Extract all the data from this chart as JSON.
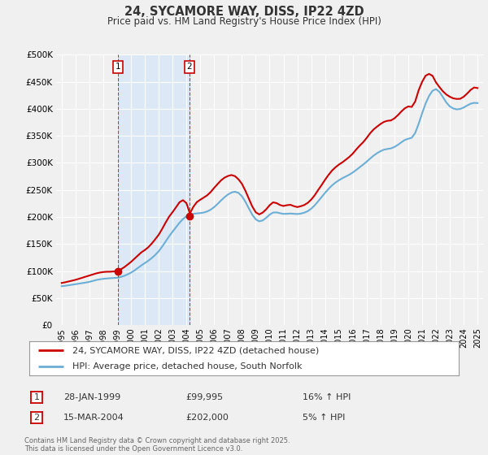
{
  "title": "24, SYCAMORE WAY, DISS, IP22 4ZD",
  "subtitle": "Price paid vs. HM Land Registry's House Price Index (HPI)",
  "ytick_values": [
    0,
    50000,
    100000,
    150000,
    200000,
    250000,
    300000,
    350000,
    400000,
    450000,
    500000
  ],
  "ylim": [
    0,
    500000
  ],
  "xlim": [
    1994.6,
    2025.4
  ],
  "background_color": "#f0f0f0",
  "plot_bg_color": "#f0f0f0",
  "shade_color": "#dce8f5",
  "grid_color": "#ffffff",
  "hpi_color": "#6baed6",
  "price_color": "#cc0000",
  "transaction1": {
    "date": "28-JAN-1999",
    "price": 99995,
    "hpi_diff": "16% ↑ HPI",
    "x": 1999.08
  },
  "transaction2": {
    "date": "15-MAR-2004",
    "price": 202000,
    "hpi_diff": "5% ↑ HPI",
    "x": 2004.21
  },
  "legend_price_label": "24, SYCAMORE WAY, DISS, IP22 4ZD (detached house)",
  "legend_hpi_label": "HPI: Average price, detached house, South Norfolk",
  "footnote": "Contains HM Land Registry data © Crown copyright and database right 2025.\nThis data is licensed under the Open Government Licence v3.0.",
  "hpi_data_x": [
    1995.0,
    1995.25,
    1995.5,
    1995.75,
    1996.0,
    1996.25,
    1996.5,
    1996.75,
    1997.0,
    1997.25,
    1997.5,
    1997.75,
    1998.0,
    1998.25,
    1998.5,
    1998.75,
    1999.0,
    1999.25,
    1999.5,
    1999.75,
    2000.0,
    2000.25,
    2000.5,
    2000.75,
    2001.0,
    2001.25,
    2001.5,
    2001.75,
    2002.0,
    2002.25,
    2002.5,
    2002.75,
    2003.0,
    2003.25,
    2003.5,
    2003.75,
    2004.0,
    2004.25,
    2004.5,
    2004.75,
    2005.0,
    2005.25,
    2005.5,
    2005.75,
    2006.0,
    2006.25,
    2006.5,
    2006.75,
    2007.0,
    2007.25,
    2007.5,
    2007.75,
    2008.0,
    2008.25,
    2008.5,
    2008.75,
    2009.0,
    2009.25,
    2009.5,
    2009.75,
    2010.0,
    2010.25,
    2010.5,
    2010.75,
    2011.0,
    2011.25,
    2011.5,
    2011.75,
    2012.0,
    2012.25,
    2012.5,
    2012.75,
    2013.0,
    2013.25,
    2013.5,
    2013.75,
    2014.0,
    2014.25,
    2014.5,
    2014.75,
    2015.0,
    2015.25,
    2015.5,
    2015.75,
    2016.0,
    2016.25,
    2016.5,
    2016.75,
    2017.0,
    2017.25,
    2017.5,
    2017.75,
    2018.0,
    2018.25,
    2018.5,
    2018.75,
    2019.0,
    2019.25,
    2019.5,
    2019.75,
    2020.0,
    2020.25,
    2020.5,
    2020.75,
    2021.0,
    2021.25,
    2021.5,
    2021.75,
    2022.0,
    2022.25,
    2022.5,
    2022.75,
    2023.0,
    2023.25,
    2023.5,
    2023.75,
    2024.0,
    2024.25,
    2024.5,
    2024.75,
    2025.0
  ],
  "hpi_data_y": [
    72000,
    73000,
    74000,
    75000,
    76000,
    77000,
    78000,
    79000,
    80000,
    82000,
    84000,
    85000,
    86000,
    86500,
    87000,
    87500,
    87500,
    89000,
    91000,
    94000,
    97000,
    101000,
    106000,
    111000,
    115000,
    119000,
    124000,
    130000,
    136000,
    145000,
    155000,
    165000,
    173000,
    181000,
    190000,
    197000,
    202000,
    205000,
    206000,
    207000,
    207000,
    208000,
    210000,
    213000,
    218000,
    224000,
    231000,
    237000,
    242000,
    246000,
    248000,
    246000,
    240000,
    229000,
    216000,
    203000,
    194000,
    190000,
    193000,
    198000,
    205000,
    210000,
    209000,
    207000,
    205000,
    206000,
    207000,
    206000,
    205000,
    206000,
    208000,
    210000,
    215000,
    221000,
    229000,
    237000,
    245000,
    252000,
    259000,
    264000,
    268000,
    272000,
    275000,
    278000,
    282000,
    287000,
    292000,
    297000,
    302000,
    308000,
    314000,
    318000,
    322000,
    325000,
    326000,
    326000,
    329000,
    333000,
    338000,
    343000,
    346000,
    343000,
    352000,
    372000,
    392000,
    411000,
    425000,
    435000,
    440000,
    432000,
    422000,
    410000,
    403000,
    400000,
    398000,
    399000,
    402000,
    406000,
    410000,
    412000,
    410000
  ],
  "price_data_x": [
    1995.0,
    1995.25,
    1995.5,
    1995.75,
    1996.0,
    1996.25,
    1996.5,
    1996.75,
    1997.0,
    1997.25,
    1997.5,
    1997.75,
    1998.0,
    1998.25,
    1998.5,
    1998.75,
    1999.0,
    1999.25,
    1999.5,
    1999.75,
    2000.0,
    2000.25,
    2000.5,
    2000.75,
    2001.0,
    2001.25,
    2001.5,
    2001.75,
    2002.0,
    2002.25,
    2002.5,
    2002.75,
    2003.0,
    2003.25,
    2003.5,
    2003.75,
    2004.0,
    2004.25,
    2004.5,
    2004.75,
    2005.0,
    2005.25,
    2005.5,
    2005.75,
    2006.0,
    2006.25,
    2006.5,
    2006.75,
    2007.0,
    2007.25,
    2007.5,
    2007.75,
    2008.0,
    2008.25,
    2008.5,
    2008.75,
    2009.0,
    2009.25,
    2009.5,
    2009.75,
    2010.0,
    2010.25,
    2010.5,
    2010.75,
    2011.0,
    2011.25,
    2011.5,
    2011.75,
    2012.0,
    2012.25,
    2012.5,
    2012.75,
    2013.0,
    2013.25,
    2013.5,
    2013.75,
    2014.0,
    2014.25,
    2014.5,
    2014.75,
    2015.0,
    2015.25,
    2015.5,
    2015.75,
    2016.0,
    2016.25,
    2016.5,
    2016.75,
    2017.0,
    2017.25,
    2017.5,
    2017.75,
    2018.0,
    2018.25,
    2018.5,
    2018.75,
    2019.0,
    2019.25,
    2019.5,
    2019.75,
    2020.0,
    2020.25,
    2020.5,
    2020.75,
    2021.0,
    2021.25,
    2021.5,
    2021.75,
    2022.0,
    2022.25,
    2022.5,
    2022.75,
    2023.0,
    2023.25,
    2023.5,
    2023.75,
    2024.0,
    2024.25,
    2024.5,
    2024.75,
    2025.0
  ],
  "price_data_y": [
    78000,
    79500,
    81000,
    82500,
    84000,
    86000,
    88000,
    90000,
    92000,
    94000,
    96000,
    97500,
    98500,
    99000,
    99000,
    99500,
    99995,
    103000,
    107000,
    112000,
    117000,
    123000,
    129000,
    135000,
    139000,
    144000,
    151000,
    159000,
    167000,
    178000,
    190000,
    201000,
    209000,
    218000,
    228000,
    232000,
    228000,
    202000,
    220000,
    228000,
    232000,
    236000,
    240000,
    246000,
    254000,
    261000,
    268000,
    273000,
    276000,
    278000,
    276000,
    270000,
    262000,
    249000,
    234000,
    219000,
    208000,
    204000,
    208000,
    214000,
    222000,
    228000,
    226000,
    222000,
    220000,
    222000,
    223000,
    220000,
    218000,
    220000,
    222000,
    226000,
    232000,
    240000,
    250000,
    259000,
    269000,
    278000,
    286000,
    292000,
    297000,
    301000,
    306000,
    311000,
    317000,
    325000,
    332000,
    338000,
    346000,
    355000,
    362000,
    367000,
    372000,
    376000,
    378000,
    378000,
    382000,
    388000,
    395000,
    401000,
    405000,
    402000,
    412000,
    435000,
    450000,
    462000,
    465000,
    462000,
    448000,
    440000,
    432000,
    426000,
    422000,
    419000,
    418000,
    418000,
    422000,
    428000,
    435000,
    440000,
    438000
  ],
  "xtick_years": [
    1995,
    1996,
    1997,
    1998,
    1999,
    2000,
    2001,
    2002,
    2003,
    2004,
    2005,
    2006,
    2007,
    2008,
    2009,
    2010,
    2011,
    2012,
    2013,
    2014,
    2015,
    2016,
    2017,
    2018,
    2019,
    2020,
    2021,
    2022,
    2023,
    2024,
    2025
  ]
}
